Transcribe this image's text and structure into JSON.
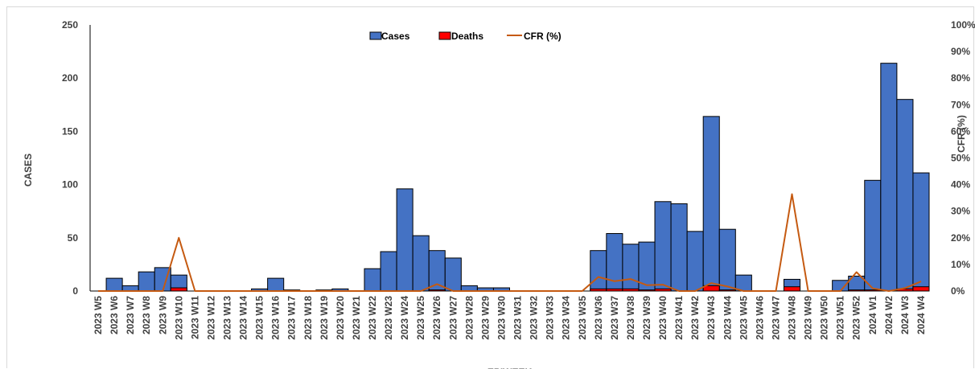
{
  "chart_data": {
    "type": "bar",
    "categories": [
      "2023 W5",
      "2023 W6",
      "2023 W7",
      "2023 W8",
      "2023 W9",
      "2023 W10",
      "2023 W11",
      "2023 W12",
      "2023 W13",
      "2023 W14",
      "2023 W15",
      "2023 W16",
      "2023 W17",
      "2023 W18",
      "2023 W19",
      "2023 W20",
      "2023 W21",
      "2023 W22",
      "2023 W23",
      "2023 W24",
      "2023 W25",
      "2023 W26",
      "2023 W27",
      "2023 W28",
      "2023 W29",
      "2023 W30",
      "2023 W31",
      "2023 W32",
      "2023 W33",
      "2023 W34",
      "2023 W35",
      "2023 W36",
      "2023 W37",
      "2023 W38",
      "2023 W39",
      "2023 W40",
      "2023 W41",
      "2023 W42",
      "2023 W43",
      "2023 W44",
      "2023 W45",
      "2023 W46",
      "2023 W47",
      "2023 W48",
      "2023 W49",
      "2023 W50",
      "2023 W51",
      "2023 W52",
      "2024 W1",
      "2024 W2",
      "2024 W3",
      "2024 W4"
    ],
    "series": [
      {
        "name": "Cases",
        "axis": "left",
        "kind": "bar",
        "color": "#4472C4",
        "values": [
          0,
          12,
          5,
          18,
          22,
          15,
          0,
          0,
          0,
          0,
          2,
          12,
          1,
          0,
          1,
          2,
          0,
          21,
          37,
          96,
          52,
          38,
          31,
          5,
          3,
          3,
          0,
          0,
          0,
          0,
          0,
          38,
          54,
          44,
          46,
          84,
          82,
          56,
          164,
          58,
          15,
          0,
          0,
          11,
          0,
          0,
          10,
          14,
          104,
          214,
          180,
          111
        ]
      },
      {
        "name": "Deaths",
        "axis": "left",
        "kind": "bar",
        "color": "#FF0000",
        "values": [
          0,
          0,
          0,
          0,
          0,
          3,
          0,
          0,
          0,
          0,
          0,
          0,
          0,
          0,
          0,
          0,
          0,
          0,
          0,
          0,
          0,
          1,
          0,
          0,
          0,
          0,
          0,
          0,
          0,
          0,
          0,
          2,
          2,
          2,
          1,
          2,
          0,
          0,
          5,
          1,
          0,
          0,
          0,
          4,
          0,
          0,
          0,
          1,
          1,
          0,
          2,
          4
        ]
      },
      {
        "name": "CFR (%)",
        "axis": "right",
        "kind": "line",
        "color": "#C55A11",
        "values": [
          0,
          0,
          0,
          0,
          0,
          20,
          0,
          0,
          0,
          0,
          0,
          0,
          0,
          0,
          0,
          0,
          0,
          0,
          0,
          0,
          0,
          2.6,
          0,
          0,
          0,
          0,
          0,
          0,
          0,
          0,
          0,
          5.3,
          3.7,
          4.5,
          2.2,
          2.4,
          0,
          0,
          3.0,
          1.7,
          0,
          0,
          0,
          36.4,
          0,
          0,
          0,
          7.1,
          1.0,
          0,
          1.1,
          3.6
        ]
      }
    ],
    "xlabel": "EPIWEEK",
    "ylabel": "CASES",
    "y2label": "CFR (%)",
    "ylim": [
      0,
      250
    ],
    "y2lim": [
      0,
      100
    ],
    "yticks": [
      "0",
      "50",
      "100",
      "150",
      "200",
      "250"
    ],
    "y2ticks": [
      "0%",
      "10%",
      "20%",
      "30%",
      "40%",
      "50%",
      "60%",
      "70%",
      "80%",
      "90%",
      "100%"
    ],
    "legend": {
      "position": "top-center",
      "labels": [
        "Cases",
        "Deaths",
        "CFR (%)"
      ]
    },
    "grid": false
  }
}
